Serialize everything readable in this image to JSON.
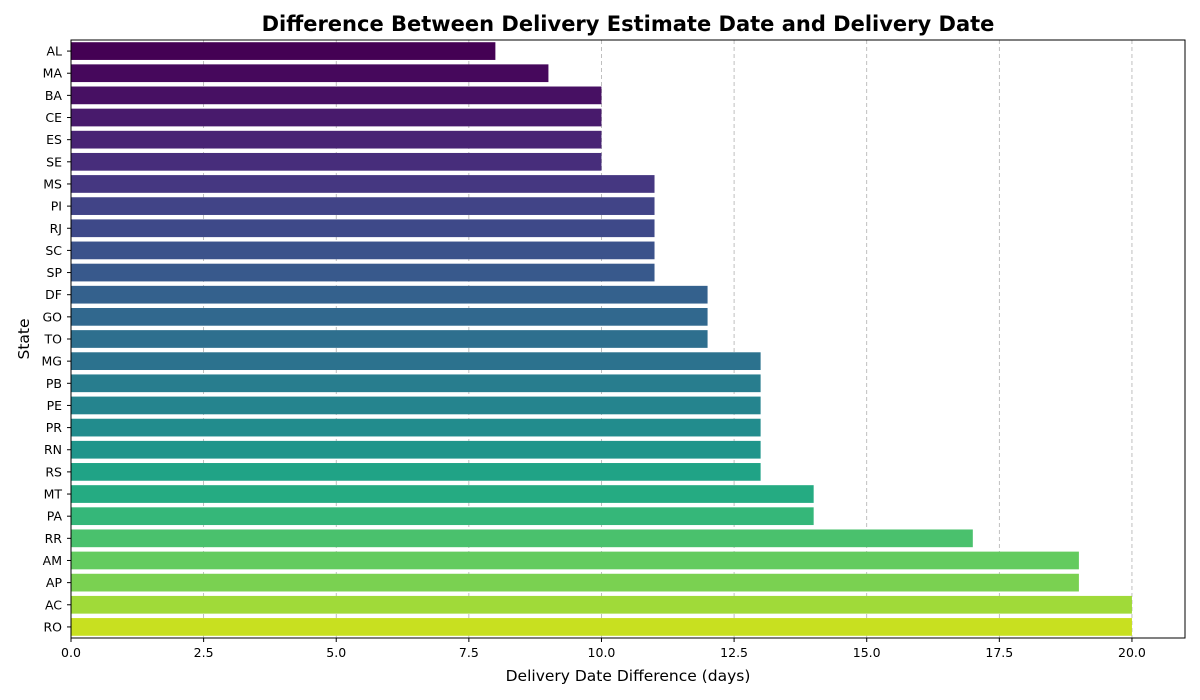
{
  "chart_data": {
    "type": "bar",
    "orientation": "horizontal",
    "title": "Difference Between Delivery Estimate Date and Delivery Date",
    "xlabel": "Delivery Date Difference (days)",
    "ylabel": "State",
    "xlim": [
      0,
      21
    ],
    "xticks": [
      "0.0",
      "2.5",
      "5.0",
      "7.5",
      "10.0",
      "12.5",
      "15.0",
      "17.5",
      "20.0"
    ],
    "grid": "x-dashed",
    "palette": "viridis",
    "categories": [
      "AL",
      "MA",
      "BA",
      "CE",
      "ES",
      "SE",
      "MS",
      "PI",
      "RJ",
      "SC",
      "SP",
      "DF",
      "GO",
      "TO",
      "MG",
      "PB",
      "PE",
      "PR",
      "RN",
      "RS",
      "MT",
      "PA",
      "RR",
      "AM",
      "AP",
      "AC",
      "RO"
    ],
    "values": [
      8,
      9,
      10,
      10,
      10,
      10,
      11,
      11,
      11,
      11,
      11,
      12,
      12,
      12,
      13,
      13,
      13,
      13,
      13,
      13,
      14,
      14,
      17,
      19,
      19,
      20,
      20
    ],
    "colors": [
      "#440154",
      "#46085c",
      "#471063",
      "#481a6c",
      "#482374",
      "#472d7b",
      "#453781",
      "#414487",
      "#3e4989",
      "#3b528b",
      "#38598c",
      "#34618d",
      "#31688e",
      "#2e6f8e",
      "#2c728e",
      "#287d8e",
      "#25848e",
      "#228c8d",
      "#1f958b",
      "#20a386",
      "#25ab82",
      "#35b779",
      "#4ac16d",
      "#63cb5f",
      "#7ad151",
      "#a0da39",
      "#c8e020"
    ]
  }
}
